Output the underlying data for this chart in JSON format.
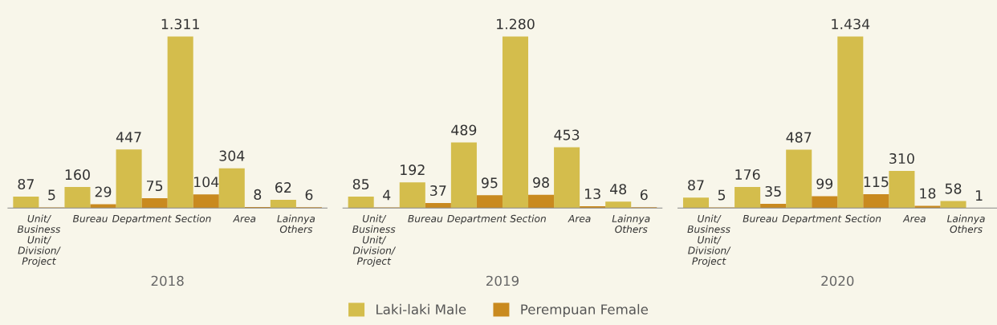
{
  "chart_data": [
    {
      "type": "bar",
      "xlabel": "2018",
      "categories": [
        "Unit/\nBusiness\nUnit/\nDivision/\nProject",
        "Bureau",
        "Department",
        "Section",
        "Area",
        "Lainnya\nOthers"
      ],
      "series": [
        {
          "name": "Laki-laki Male",
          "color": "#d4bd4c",
          "values": [
            87,
            160,
            447,
            1311,
            304,
            62
          ],
          "value_labels": [
            "87",
            "160",
            "447",
            "1.311",
            "304",
            "62"
          ]
        },
        {
          "name": "Perempuan Female",
          "color": "#c98a1f",
          "values": [
            5,
            29,
            75,
            104,
            8,
            6
          ],
          "value_labels": [
            "5",
            "29",
            "75",
            "104",
            "8",
            "6"
          ]
        }
      ],
      "legend": "bottom"
    },
    {
      "type": "bar",
      "xlabel": "2019",
      "categories": [
        "Unit/\nBusiness\nUnit/\nDivision/\nProject",
        "Bureau",
        "Department",
        "Section",
        "Area",
        "Lainnya\nOthers"
      ],
      "series": [
        {
          "name": "Laki-laki Male",
          "color": "#d4bd4c",
          "values": [
            85,
            192,
            489,
            1280,
            453,
            48
          ],
          "value_labels": [
            "85",
            "192",
            "489",
            "1.280",
            "453",
            "48"
          ]
        },
        {
          "name": "Perempuan Female",
          "color": "#c98a1f",
          "values": [
            4,
            37,
            95,
            98,
            13,
            6
          ],
          "value_labels": [
            "4",
            "37",
            "95",
            "98",
            "13",
            "6"
          ]
        }
      ],
      "legend": "bottom"
    },
    {
      "type": "bar",
      "xlabel": "2020",
      "categories": [
        "Unit/\nBusiness\nUnit/\nDivision/\nProject",
        "Bureau",
        "Department",
        "Section",
        "Area",
        "Lainnya\nOthers"
      ],
      "series": [
        {
          "name": "Laki-laki Male",
          "color": "#d4bd4c",
          "values": [
            87,
            176,
            487,
            1434,
            310,
            58
          ],
          "value_labels": [
            "87",
            "176",
            "487",
            "1.434",
            "310",
            "58"
          ]
        },
        {
          "name": "Perempuan Female",
          "color": "#c98a1f",
          "values": [
            5,
            35,
            99,
            115,
            18,
            1
          ],
          "value_labels": [
            "5",
            "35",
            "99",
            "115",
            "18",
            "1"
          ]
        }
      ],
      "legend": "bottom"
    }
  ]
}
